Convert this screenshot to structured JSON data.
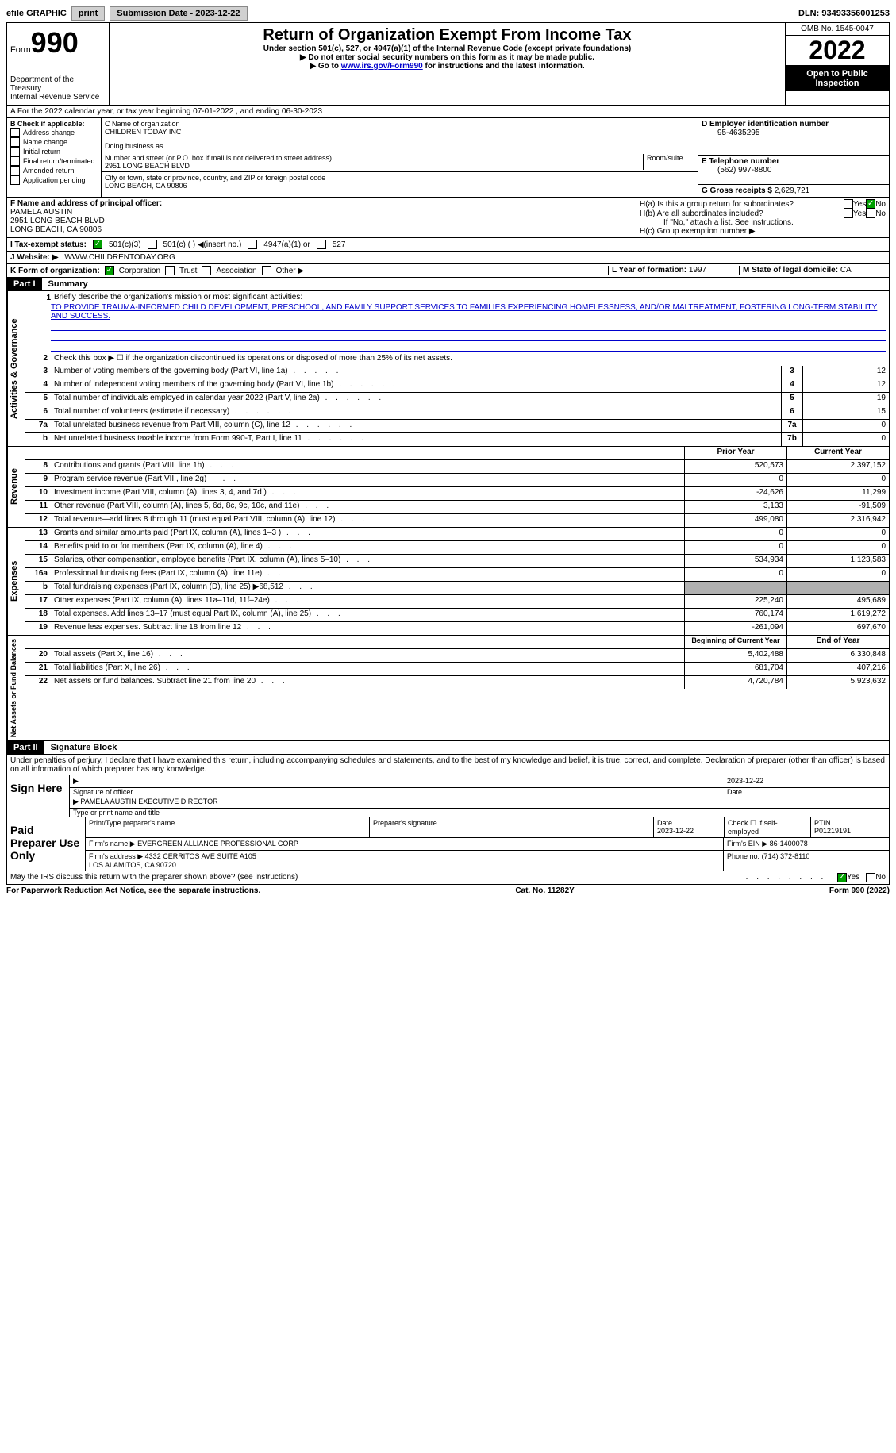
{
  "topbar": {
    "efile_label": "efile GRAPHIC",
    "print_btn": "print",
    "submission_label": "Submission Date - 2023-12-22",
    "dln": "DLN: 93493356001253"
  },
  "header": {
    "form_label": "Form",
    "form_number": "990",
    "dept": "Department of the Treasury\nInternal Revenue Service",
    "title": "Return of Organization Exempt From Income Tax",
    "subtitle": "Under section 501(c), 527, or 4947(a)(1) of the Internal Revenue Code (except private foundations)",
    "note1": "▶ Do not enter social security numbers on this form as it may be made public.",
    "note2_prefix": "▶ Go to ",
    "note2_link": "www.irs.gov/Form990",
    "note2_suffix": " for instructions and the latest information.",
    "omb": "OMB No. 1545-0047",
    "year": "2022",
    "open": "Open to Public Inspection"
  },
  "row_a": "A For the 2022 calendar year, or tax year beginning 07-01-2022    , and ending 06-30-2023",
  "section_b": {
    "label": "B Check if applicable:",
    "items": [
      "Address change",
      "Name change",
      "Initial return",
      "Final return/terminated",
      "Amended return",
      "Application pending"
    ]
  },
  "section_c": {
    "name_label": "C Name of organization",
    "name": "CHILDREN TODAY INC",
    "dba_label": "Doing business as",
    "street_label": "Number and street (or P.O. box if mail is not delivered to street address)",
    "room_label": "Room/suite",
    "street": "2951 LONG BEACH BLVD",
    "city_label": "City or town, state or province, country, and ZIP or foreign postal code",
    "city": "LONG BEACH, CA  90806"
  },
  "section_de": {
    "d_label": "D Employer identification number",
    "ein": "95-4635295",
    "e_label": "E Telephone number",
    "phone": "(562) 997-8800",
    "g_label": "G Gross receipts $",
    "gross": "2,629,721"
  },
  "section_f": {
    "label": "F  Name and address of principal officer:",
    "name": "PAMELA AUSTIN",
    "addr1": "2951 LONG BEACH BLVD",
    "addr2": "LONG BEACH, CA  90806"
  },
  "section_h": {
    "ha": "H(a)  Is this a group return for subordinates?",
    "hb": "H(b)  Are all subordinates included?",
    "hb_note": "If \"No,\" attach a list. See instructions.",
    "hc": "H(c)  Group exemption number ▶",
    "yes": "Yes",
    "no": "No"
  },
  "row_i": {
    "label": "I    Tax-exempt status:",
    "opt1": "501(c)(3)",
    "opt2": "501(c) (  ) ◀(insert no.)",
    "opt3": "4947(a)(1) or",
    "opt4": "527"
  },
  "row_j": {
    "label": "J   Website: ▶",
    "value": "WWW.CHILDRENTODAY.ORG"
  },
  "row_k": {
    "label": "K Form of organization:",
    "opts": [
      "Corporation",
      "Trust",
      "Association",
      "Other ▶"
    ],
    "l_label": "L Year of formation:",
    "l_val": "1997",
    "m_label": "M State of legal domicile:",
    "m_val": "CA"
  },
  "part1": {
    "header": "Part I",
    "title": "Summary",
    "line1_label": "Briefly describe the organization's mission or most significant activities:",
    "mission": "TO PROVIDE TRAUMA-INFORMED CHILD DEVELOPMENT, PRESCHOOL, AND FAMILY SUPPORT SERVICES TO FAMILIES EXPERIENCING HOMELESSNESS, AND/OR MALTREATMENT, FOSTERING LONG-TERM STABILITY AND SUCCESS.",
    "line2": "Check this box ▶ ☐ if the organization discontinued its operations or disposed of more than 25% of its net assets.",
    "vert_ag": "Activities & Governance",
    "vert_rev": "Revenue",
    "vert_exp": "Expenses",
    "vert_net": "Net Assets or Fund Balances",
    "rows_single": [
      {
        "n": "3",
        "label": "Number of voting members of the governing body (Part VI, line 1a)",
        "box": "3",
        "val": "12"
      },
      {
        "n": "4",
        "label": "Number of independent voting members of the governing body (Part VI, line 1b)",
        "box": "4",
        "val": "12"
      },
      {
        "n": "5",
        "label": "Total number of individuals employed in calendar year 2022 (Part V, line 2a)",
        "box": "5",
        "val": "19"
      },
      {
        "n": "6",
        "label": "Total number of volunteers (estimate if necessary)",
        "box": "6",
        "val": "15"
      },
      {
        "n": "7a",
        "label": "Total unrelated business revenue from Part VIII, column (C), line 12",
        "box": "7a",
        "val": "0"
      },
      {
        "n": "b",
        "label": "Net unrelated business taxable income from Form 990-T, Part I, line 11",
        "box": "7b",
        "val": "0"
      }
    ],
    "col_prior": "Prior Year",
    "col_current": "Current Year",
    "rows_revenue": [
      {
        "n": "8",
        "label": "Contributions and grants (Part VIII, line 1h)",
        "prior": "520,573",
        "current": "2,397,152"
      },
      {
        "n": "9",
        "label": "Program service revenue (Part VIII, line 2g)",
        "prior": "0",
        "current": "0"
      },
      {
        "n": "10",
        "label": "Investment income (Part VIII, column (A), lines 3, 4, and 7d )",
        "prior": "-24,626",
        "current": "11,299"
      },
      {
        "n": "11",
        "label": "Other revenue (Part VIII, column (A), lines 5, 6d, 8c, 9c, 10c, and 11e)",
        "prior": "3,133",
        "current": "-91,509"
      },
      {
        "n": "12",
        "label": "Total revenue—add lines 8 through 11 (must equal Part VIII, column (A), line 12)",
        "prior": "499,080",
        "current": "2,316,942"
      }
    ],
    "rows_expenses": [
      {
        "n": "13",
        "label": "Grants and similar amounts paid (Part IX, column (A), lines 1–3 )",
        "prior": "0",
        "current": "0"
      },
      {
        "n": "14",
        "label": "Benefits paid to or for members (Part IX, column (A), line 4)",
        "prior": "0",
        "current": "0"
      },
      {
        "n": "15",
        "label": "Salaries, other compensation, employee benefits (Part IX, column (A), lines 5–10)",
        "prior": "534,934",
        "current": "1,123,583"
      },
      {
        "n": "16a",
        "label": "Professional fundraising fees (Part IX, column (A), line 11e)",
        "prior": "0",
        "current": "0"
      },
      {
        "n": "b",
        "label": "Total fundraising expenses (Part IX, column (D), line 25) ▶68,512",
        "prior": "grey",
        "current": "grey"
      },
      {
        "n": "17",
        "label": "Other expenses (Part IX, column (A), lines 11a–11d, 11f–24e)",
        "prior": "225,240",
        "current": "495,689"
      },
      {
        "n": "18",
        "label": "Total expenses. Add lines 13–17 (must equal Part IX, column (A), line 25)",
        "prior": "760,174",
        "current": "1,619,272"
      },
      {
        "n": "19",
        "label": "Revenue less expenses. Subtract line 18 from line 12",
        "prior": "-261,094",
        "current": "697,670"
      }
    ],
    "col_begin": "Beginning of Current Year",
    "col_end": "End of Year",
    "rows_net": [
      {
        "n": "20",
        "label": "Total assets (Part X, line 16)",
        "prior": "5,402,488",
        "current": "6,330,848"
      },
      {
        "n": "21",
        "label": "Total liabilities (Part X, line 26)",
        "prior": "681,704",
        "current": "407,216"
      },
      {
        "n": "22",
        "label": "Net assets or fund balances. Subtract line 21 from line 20",
        "prior": "4,720,784",
        "current": "5,923,632"
      }
    ]
  },
  "part2": {
    "header": "Part II",
    "title": "Signature Block",
    "declaration": "Under penalties of perjury, I declare that I have examined this return, including accompanying schedules and statements, and to the best of my knowledge and belief, it is true, correct, and complete. Declaration of preparer (other than officer) is based on all information of which preparer has any knowledge.",
    "sign_here": "Sign Here",
    "sig_officer": "Signature of officer",
    "sig_date_fill": "2023-12-22",
    "sig_date": "Date",
    "sig_name": "PAMELA AUSTIN  EXECUTIVE DIRECTOR",
    "sig_name_label": "Type or print name and title",
    "paid": "Paid Preparer Use Only",
    "prep_name_label": "Print/Type preparer's name",
    "prep_sig_label": "Preparer's signature",
    "prep_date_label": "Date",
    "prep_date": "2023-12-22",
    "check_self": "Check ☐ if self-employed",
    "ptin_label": "PTIN",
    "ptin": "P01219191",
    "firm_name_label": "Firm's name    ▶",
    "firm_name": "EVERGREEN ALLIANCE PROFESSIONAL CORP",
    "firm_ein_label": "Firm's EIN ▶",
    "firm_ein": "86-1400078",
    "firm_addr_label": "Firm's address ▶",
    "firm_addr": "4332 CERRITOS AVE SUITE A105\nLOS ALAMITOS, CA  90720",
    "phone_label": "Phone no.",
    "phone": "(714) 372-8110",
    "discuss": "May the IRS discuss this return with the preparer shown above? (see instructions)",
    "yes": "Yes",
    "no": "No"
  },
  "footer": {
    "left": "For Paperwork Reduction Act Notice, see the separate instructions.",
    "center": "Cat. No. 11282Y",
    "right": "Form 990 (2022)"
  }
}
